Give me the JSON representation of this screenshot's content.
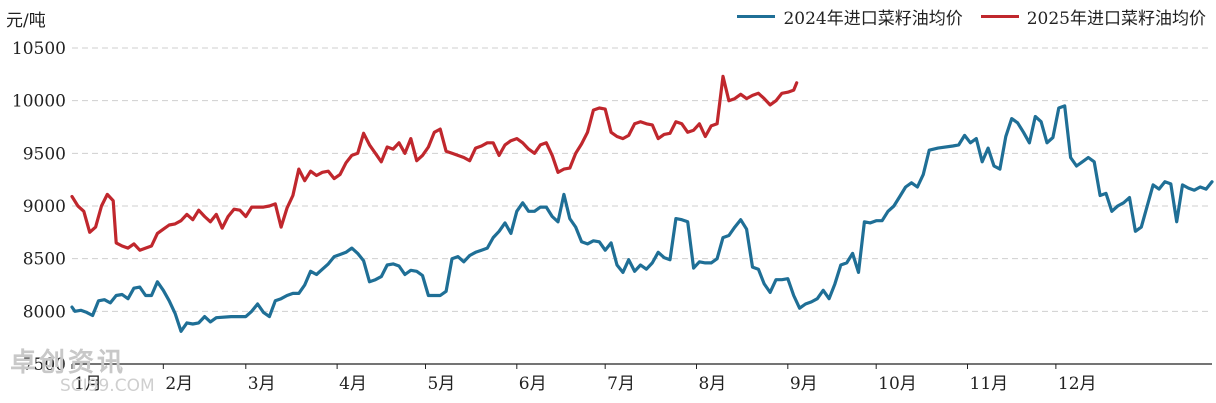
{
  "unit_label": "元/吨",
  "watermark": {
    "name": "卓创资讯",
    "sub": "SCI99.COM"
  },
  "chart_data": {
    "type": "line",
    "ylim": [
      7500,
      10500
    ],
    "yticks": [
      7500,
      8000,
      8500,
      9000,
      9500,
      10000,
      10500
    ],
    "x_unit": "day_of_year",
    "month_labels": [
      "1月",
      "2月",
      "3月",
      "4月",
      "5月",
      "6月",
      "7月",
      "8月",
      "9月",
      "10月",
      "11月",
      "12月"
    ],
    "month_start_days": [
      1,
      32,
      60,
      91,
      121,
      152,
      182,
      213,
      244,
      274,
      305,
      335
    ],
    "grid": true,
    "legend_position": "top-right",
    "series": [
      {
        "name": "2024年进口菜籽油均价",
        "color": "#1f6f96",
        "points": [
          [
            1,
            8040
          ],
          [
            2,
            8000
          ],
          [
            4,
            8010
          ],
          [
            6,
            7990
          ],
          [
            8,
            7960
          ],
          [
            10,
            8100
          ],
          [
            12,
            8110
          ],
          [
            14,
            8080
          ],
          [
            16,
            8150
          ],
          [
            18,
            8160
          ],
          [
            20,
            8120
          ],
          [
            22,
            8220
          ],
          [
            24,
            8230
          ],
          [
            26,
            8150
          ],
          [
            28,
            8150
          ],
          [
            30,
            8280
          ],
          [
            32,
            8200
          ],
          [
            34,
            8100
          ],
          [
            36,
            7980
          ],
          [
            38,
            7810
          ],
          [
            40,
            7890
          ],
          [
            42,
            7880
          ],
          [
            44,
            7890
          ],
          [
            46,
            7950
          ],
          [
            48,
            7900
          ],
          [
            50,
            7940
          ],
          [
            55,
            7950
          ],
          [
            60,
            7950
          ],
          [
            62,
            8000
          ],
          [
            64,
            8070
          ],
          [
            66,
            7990
          ],
          [
            68,
            7950
          ],
          [
            70,
            8100
          ],
          [
            72,
            8120
          ],
          [
            74,
            8150
          ],
          [
            76,
            8170
          ],
          [
            78,
            8170
          ],
          [
            80,
            8250
          ],
          [
            82,
            8380
          ],
          [
            84,
            8350
          ],
          [
            86,
            8400
          ],
          [
            88,
            8450
          ],
          [
            90,
            8520
          ],
          [
            92,
            8540
          ],
          [
            94,
            8560
          ],
          [
            96,
            8600
          ],
          [
            98,
            8550
          ],
          [
            100,
            8480
          ],
          [
            102,
            8280
          ],
          [
            104,
            8300
          ],
          [
            106,
            8330
          ],
          [
            108,
            8440
          ],
          [
            110,
            8450
          ],
          [
            112,
            8430
          ],
          [
            114,
            8350
          ],
          [
            116,
            8390
          ],
          [
            118,
            8380
          ],
          [
            120,
            8340
          ],
          [
            122,
            8150
          ],
          [
            126,
            8150
          ],
          [
            128,
            8190
          ],
          [
            130,
            8500
          ],
          [
            132,
            8520
          ],
          [
            134,
            8470
          ],
          [
            136,
            8530
          ],
          [
            138,
            8560
          ],
          [
            140,
            8580
          ],
          [
            142,
            8600
          ],
          [
            144,
            8700
          ],
          [
            146,
            8760
          ],
          [
            148,
            8840
          ],
          [
            150,
            8740
          ],
          [
            152,
            8950
          ],
          [
            154,
            9030
          ],
          [
            156,
            8950
          ],
          [
            158,
            8950
          ],
          [
            160,
            8990
          ],
          [
            162,
            8990
          ],
          [
            164,
            8900
          ],
          [
            166,
            8850
          ],
          [
            168,
            9110
          ],
          [
            170,
            8880
          ],
          [
            172,
            8800
          ],
          [
            174,
            8660
          ],
          [
            176,
            8640
          ],
          [
            178,
            8670
          ],
          [
            180,
            8660
          ],
          [
            182,
            8580
          ],
          [
            184,
            8650
          ],
          [
            186,
            8440
          ],
          [
            188,
            8370
          ],
          [
            190,
            8490
          ],
          [
            192,
            8380
          ],
          [
            194,
            8440
          ],
          [
            196,
            8400
          ],
          [
            198,
            8460
          ],
          [
            200,
            8560
          ],
          [
            202,
            8510
          ],
          [
            204,
            8490
          ],
          [
            206,
            8880
          ],
          [
            208,
            8870
          ],
          [
            210,
            8850
          ],
          [
            212,
            8410
          ],
          [
            214,
            8470
          ],
          [
            216,
            8460
          ],
          [
            218,
            8460
          ],
          [
            220,
            8500
          ],
          [
            222,
            8700
          ],
          [
            224,
            8720
          ],
          [
            226,
            8800
          ],
          [
            228,
            8870
          ],
          [
            230,
            8780
          ],
          [
            232,
            8420
          ],
          [
            234,
            8400
          ],
          [
            236,
            8260
          ],
          [
            238,
            8180
          ],
          [
            240,
            8300
          ],
          [
            242,
            8300
          ],
          [
            244,
            8310
          ],
          [
            246,
            8150
          ],
          [
            248,
            8030
          ],
          [
            250,
            8070
          ],
          [
            252,
            8090
          ],
          [
            254,
            8120
          ],
          [
            256,
            8200
          ],
          [
            258,
            8120
          ],
          [
            260,
            8260
          ],
          [
            262,
            8440
          ],
          [
            264,
            8460
          ],
          [
            266,
            8550
          ],
          [
            268,
            8370
          ],
          [
            270,
            8850
          ],
          [
            272,
            8840
          ],
          [
            274,
            8860
          ],
          [
            276,
            8860
          ],
          [
            278,
            8950
          ],
          [
            280,
            9000
          ],
          [
            282,
            9090
          ],
          [
            284,
            9180
          ],
          [
            286,
            9220
          ],
          [
            288,
            9180
          ],
          [
            290,
            9300
          ],
          [
            292,
            9530
          ],
          [
            295,
            9550
          ],
          [
            300,
            9570
          ],
          [
            302,
            9580
          ],
          [
            304,
            9670
          ],
          [
            306,
            9600
          ],
          [
            308,
            9640
          ],
          [
            310,
            9420
          ],
          [
            312,
            9550
          ],
          [
            314,
            9380
          ],
          [
            316,
            9350
          ],
          [
            318,
            9660
          ],
          [
            320,
            9830
          ],
          [
            322,
            9790
          ],
          [
            324,
            9700
          ],
          [
            326,
            9600
          ],
          [
            328,
            9850
          ],
          [
            330,
            9800
          ],
          [
            332,
            9600
          ],
          [
            334,
            9650
          ],
          [
            336,
            9930
          ],
          [
            338,
            9950
          ],
          [
            340,
            9460
          ],
          [
            342,
            9380
          ],
          [
            344,
            9420
          ],
          [
            346,
            9460
          ],
          [
            348,
            9420
          ],
          [
            350,
            9100
          ],
          [
            352,
            9120
          ],
          [
            354,
            8950
          ],
          [
            356,
            9000
          ],
          [
            358,
            9030
          ],
          [
            360,
            9080
          ],
          [
            362,
            8760
          ],
          [
            364,
            8800
          ],
          [
            366,
            9000
          ],
          [
            368,
            9200
          ],
          [
            370,
            9160
          ],
          [
            372,
            9230
          ],
          [
            374,
            9210
          ],
          [
            376,
            8850
          ],
          [
            378,
            9200
          ],
          [
            380,
            9170
          ],
          [
            382,
            9150
          ],
          [
            384,
            9180
          ],
          [
            386,
            9160
          ],
          [
            388,
            9230
          ]
        ]
      },
      {
        "name": "2025年进口菜籽油均价",
        "color": "#c0272d",
        "points": [
          [
            1,
            9090
          ],
          [
            3,
            9000
          ],
          [
            5,
            8950
          ],
          [
            7,
            8750
          ],
          [
            9,
            8800
          ],
          [
            11,
            9000
          ],
          [
            13,
            9110
          ],
          [
            15,
            9050
          ],
          [
            16,
            8650
          ],
          [
            18,
            8620
          ],
          [
            20,
            8600
          ],
          [
            22,
            8640
          ],
          [
            24,
            8580
          ],
          [
            26,
            8600
          ],
          [
            28,
            8620
          ],
          [
            30,
            8740
          ],
          [
            32,
            8780
          ],
          [
            34,
            8820
          ],
          [
            36,
            8830
          ],
          [
            38,
            8860
          ],
          [
            40,
            8920
          ],
          [
            42,
            8870
          ],
          [
            44,
            8960
          ],
          [
            46,
            8900
          ],
          [
            48,
            8850
          ],
          [
            50,
            8920
          ],
          [
            52,
            8790
          ],
          [
            54,
            8900
          ],
          [
            56,
            8970
          ],
          [
            58,
            8960
          ],
          [
            60,
            8900
          ],
          [
            62,
            8990
          ],
          [
            64,
            8990
          ],
          [
            66,
            8990
          ],
          [
            68,
            9000
          ],
          [
            70,
            9020
          ],
          [
            72,
            8800
          ],
          [
            74,
            8980
          ],
          [
            76,
            9100
          ],
          [
            78,
            9350
          ],
          [
            80,
            9240
          ],
          [
            82,
            9330
          ],
          [
            84,
            9290
          ],
          [
            86,
            9320
          ],
          [
            88,
            9330
          ],
          [
            90,
            9260
          ],
          [
            92,
            9300
          ],
          [
            94,
            9410
          ],
          [
            96,
            9480
          ],
          [
            98,
            9500
          ],
          [
            100,
            9690
          ],
          [
            102,
            9580
          ],
          [
            104,
            9500
          ],
          [
            106,
            9420
          ],
          [
            108,
            9560
          ],
          [
            110,
            9540
          ],
          [
            112,
            9600
          ],
          [
            114,
            9500
          ],
          [
            116,
            9640
          ],
          [
            118,
            9430
          ],
          [
            120,
            9480
          ],
          [
            122,
            9560
          ],
          [
            124,
            9700
          ],
          [
            126,
            9730
          ],
          [
            128,
            9520
          ],
          [
            130,
            9500
          ],
          [
            132,
            9480
          ],
          [
            134,
            9460
          ],
          [
            136,
            9430
          ],
          [
            138,
            9550
          ],
          [
            140,
            9570
          ],
          [
            142,
            9600
          ],
          [
            144,
            9600
          ],
          [
            146,
            9480
          ],
          [
            148,
            9580
          ],
          [
            150,
            9620
          ],
          [
            152,
            9640
          ],
          [
            154,
            9600
          ],
          [
            156,
            9540
          ],
          [
            158,
            9500
          ],
          [
            160,
            9580
          ],
          [
            162,
            9600
          ],
          [
            164,
            9480
          ],
          [
            166,
            9320
          ],
          [
            168,
            9350
          ],
          [
            170,
            9360
          ],
          [
            172,
            9500
          ],
          [
            174,
            9590
          ],
          [
            176,
            9700
          ],
          [
            178,
            9910
          ],
          [
            180,
            9930
          ],
          [
            182,
            9920
          ],
          [
            184,
            9700
          ],
          [
            186,
            9660
          ],
          [
            188,
            9640
          ],
          [
            190,
            9670
          ],
          [
            192,
            9780
          ],
          [
            194,
            9800
          ],
          [
            196,
            9780
          ],
          [
            198,
            9770
          ],
          [
            200,
            9640
          ],
          [
            202,
            9680
          ],
          [
            204,
            9690
          ],
          [
            206,
            9800
          ],
          [
            208,
            9780
          ],
          [
            210,
            9700
          ],
          [
            212,
            9720
          ],
          [
            214,
            9780
          ],
          [
            216,
            9660
          ],
          [
            218,
            9760
          ],
          [
            220,
            9780
          ],
          [
            222,
            10230
          ],
          [
            224,
            10000
          ],
          [
            226,
            10020
          ],
          [
            228,
            10060
          ],
          [
            230,
            10020
          ],
          [
            232,
            10050
          ],
          [
            234,
            10070
          ],
          [
            236,
            10020
          ],
          [
            238,
            9960
          ],
          [
            240,
            10000
          ],
          [
            242,
            10070
          ],
          [
            244,
            10080
          ],
          [
            246,
            10100
          ],
          [
            247,
            10170
          ]
        ]
      }
    ]
  }
}
